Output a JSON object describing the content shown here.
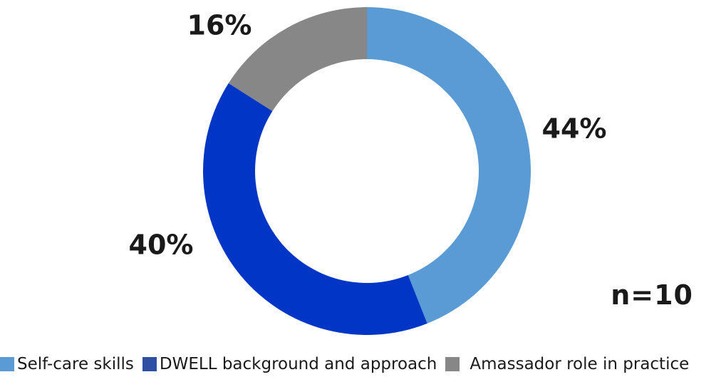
{
  "chart_data": {
    "type": "pie",
    "donut": true,
    "categories": [
      "Self-care skills",
      "DWELL background and approach",
      "Amassador role in practice"
    ],
    "values": [
      44,
      40,
      16
    ],
    "data_labels": [
      "44%",
      "40%",
      "16%"
    ],
    "colors": [
      "#5b9bd5",
      "#0135c6",
      "#878787"
    ],
    "legend_position": "bottom",
    "annotation": "n=10"
  }
}
